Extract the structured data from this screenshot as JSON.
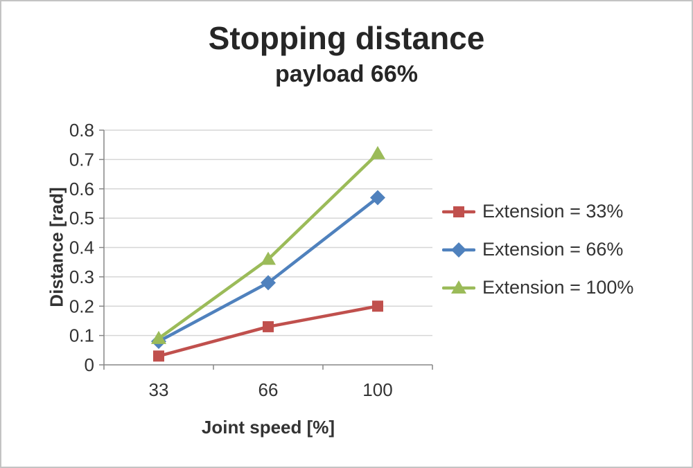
{
  "chart_data": {
    "type": "line",
    "title": "Stopping distance",
    "subtitle": "payload 66%",
    "xlabel": "Joint speed [%]",
    "ylabel": "Distance [rad]",
    "categories": [
      "33",
      "66",
      "100"
    ],
    "series": [
      {
        "name": "Extension = 33%",
        "color": "#C0504D",
        "marker": "square",
        "values": [
          0.03,
          0.13,
          0.2
        ]
      },
      {
        "name": "Extension = 66%",
        "color": "#4F81BD",
        "marker": "diamond",
        "values": [
          0.08,
          0.28,
          0.57
        ]
      },
      {
        "name": "Extension = 100%",
        "color": "#9BBB59",
        "marker": "triangle",
        "values": [
          0.09,
          0.36,
          0.72
        ]
      }
    ],
    "ylim": [
      0,
      0.8
    ],
    "ytick_step": 0.1,
    "grid": "horizontal",
    "legend_position": "right",
    "axis_color": "#868686",
    "grid_color": "#d6d6d6",
    "text_color": "#333333"
  }
}
